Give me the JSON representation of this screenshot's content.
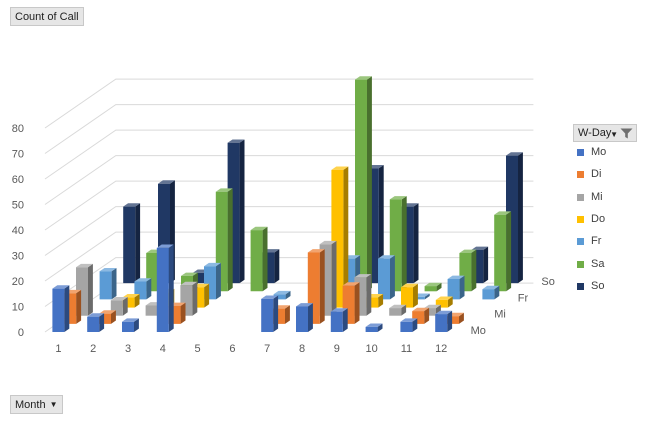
{
  "pivot": {
    "value_field": "Count of Call",
    "axis_field": "Month",
    "legend_field": "W-Day"
  },
  "chart_data": {
    "type": "bar",
    "subtype": "3d-column",
    "title": "",
    "xlabel": "",
    "ylabel": "",
    "ylim": [
      0,
      80
    ],
    "y_ticks": [
      0,
      10,
      20,
      30,
      40,
      50,
      60,
      70,
      80
    ],
    "grid": true,
    "legend_position": "right",
    "categories": [
      "1",
      "2",
      "3",
      "4",
      "5",
      "6",
      "7",
      "8",
      "9",
      "10",
      "11",
      "12"
    ],
    "series": [
      {
        "name": "Mo",
        "color": "#4472C4",
        "values": [
          17,
          6,
          4,
          33,
          0,
          0,
          13,
          10,
          8,
          2,
          4,
          7
        ]
      },
      {
        "name": "Di",
        "color": "#ED7D31",
        "values": [
          12,
          4,
          0,
          7,
          0,
          0,
          6,
          28,
          15,
          0,
          5,
          3
        ]
      },
      {
        "name": "Mi",
        "color": "#A5A5A5",
        "values": [
          19,
          6,
          4,
          12,
          0,
          0,
          0,
          28,
          15,
          3,
          3,
          0
        ]
      },
      {
        "name": "Do",
        "color": "#FFC000",
        "values": [
          0,
          4,
          6,
          8,
          0,
          0,
          0,
          54,
          4,
          8,
          3,
          0
        ]
      },
      {
        "name": "Fr",
        "color": "#5B9BD5",
        "values": [
          11,
          7,
          0,
          13,
          0,
          2,
          0,
          16,
          16,
          1,
          8,
          4
        ]
      },
      {
        "name": "Sa",
        "color": "#70AD47",
        "values": [
          0,
          15,
          6,
          39,
          24,
          0,
          0,
          83,
          36,
          2,
          15,
          30
        ]
      },
      {
        "name": "So",
        "color": "#203864",
        "values": [
          30,
          39,
          4,
          55,
          12,
          0,
          0,
          45,
          30,
          0,
          13,
          50
        ]
      }
    ],
    "depth_labels": [
      "Mo",
      "Mi",
      "Fr",
      "So"
    ]
  }
}
